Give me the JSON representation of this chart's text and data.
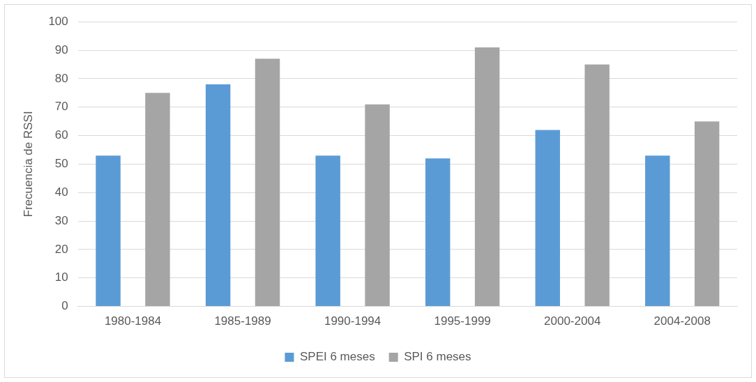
{
  "chart_data": {
    "type": "bar",
    "ylabel": "Frecuencia de RSSI",
    "categories": [
      "1980-1984",
      "1985-1989",
      "1990-1994",
      "1995-1999",
      "2000-2004",
      "2004-2008"
    ],
    "series": [
      {
        "name": "SPEI 6 meses",
        "color": "#5b9bd5",
        "values": [
          53,
          78,
          53,
          52,
          62,
          53
        ]
      },
      {
        "name": "SPI 6 meses",
        "color": "#a5a5a5",
        "values": [
          75,
          87,
          71,
          91,
          85,
          65
        ]
      }
    ],
    "ylim": [
      0,
      100
    ],
    "yticks": [
      0,
      10,
      20,
      30,
      40,
      50,
      60,
      70,
      80,
      90,
      100
    ],
    "grid": "y",
    "legend": "bottom"
  }
}
